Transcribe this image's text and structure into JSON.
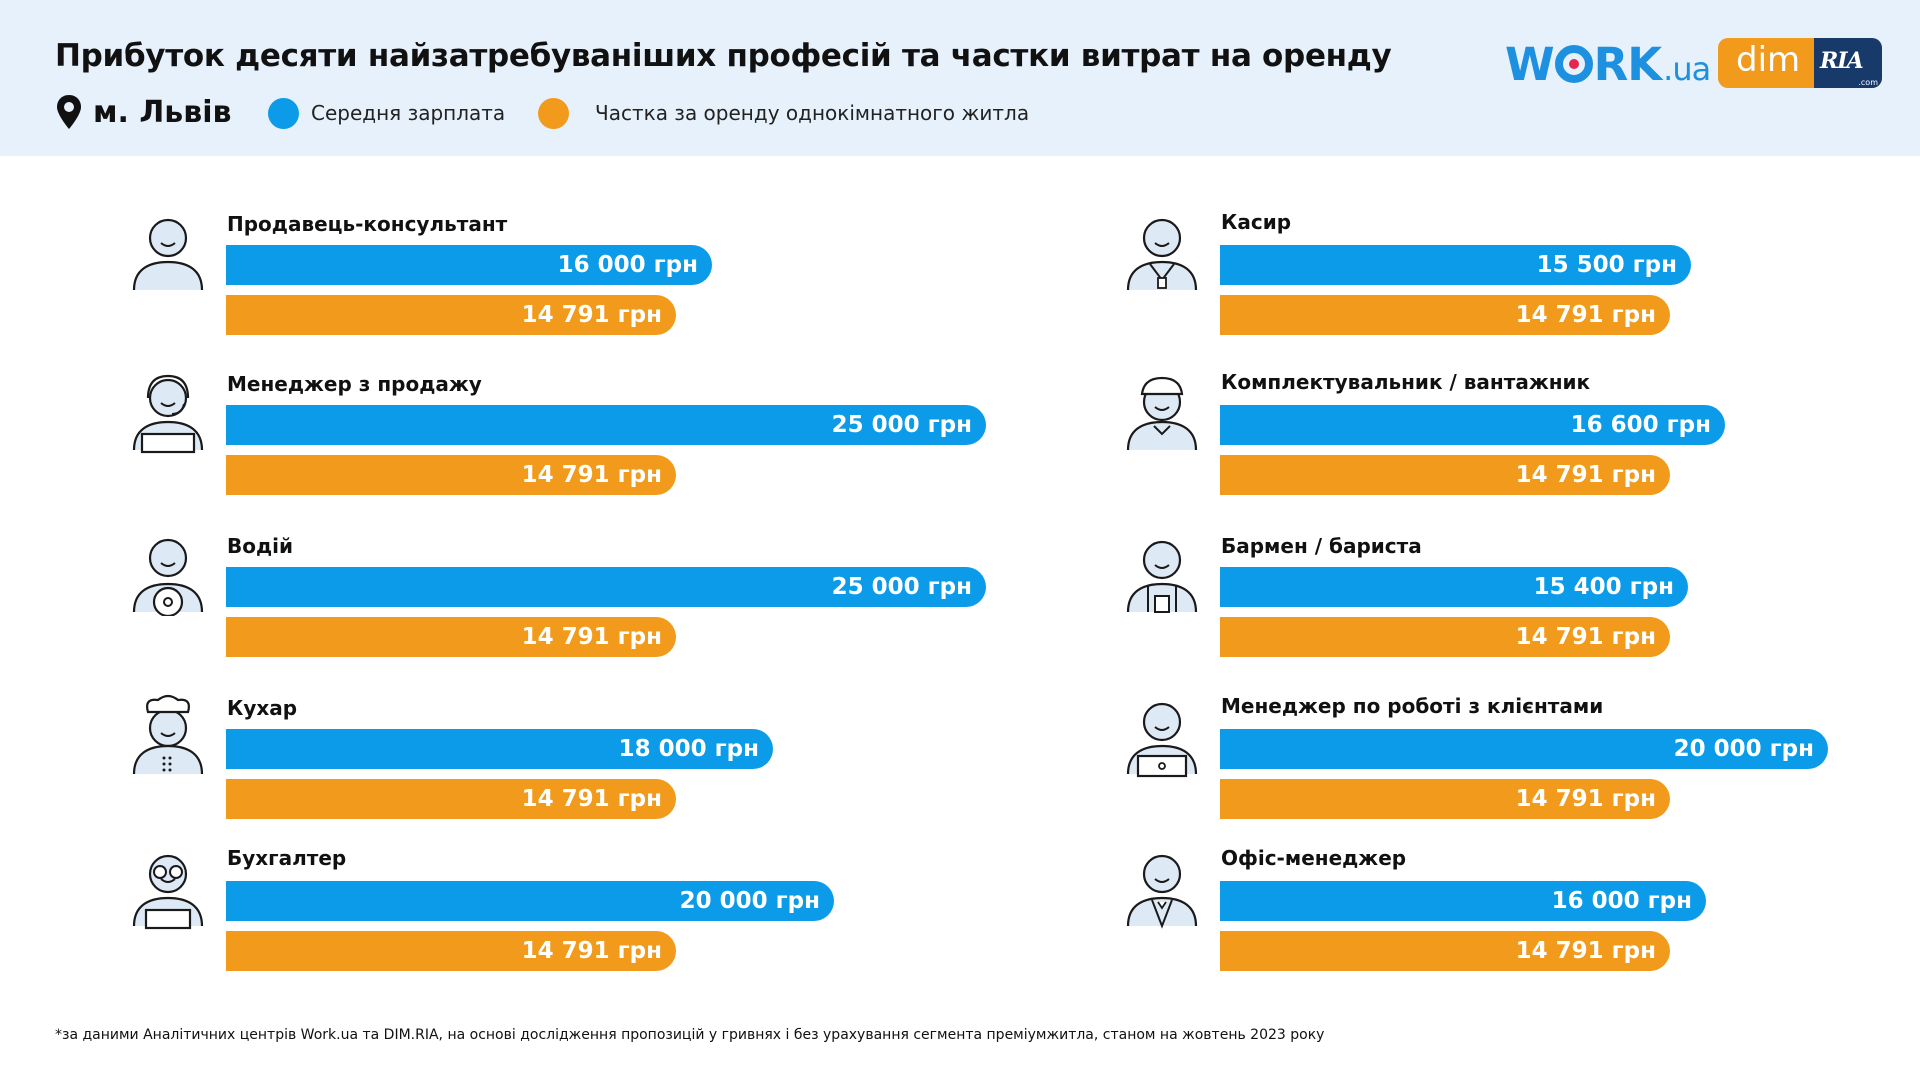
{
  "header": {
    "title": "Прибуток десяти найзатребуваніших професій та частки витрат на оренду",
    "city": "м. Львів",
    "legend": [
      {
        "label": "Середня зарплата",
        "color": "#0b9be8"
      },
      {
        "label": "Частка за оренду однокімнатного житла",
        "color": "#f29a1b"
      }
    ],
    "logos": {
      "work_text_1": "W",
      "work_text_2": "RK",
      "work_text_3": ".ua",
      "dim_text": "dim",
      "ria_text": "RIA",
      "ria_sub": ".com"
    }
  },
  "chart_data": {
    "type": "bar",
    "orientation": "horizontal",
    "unit": "грн",
    "series": [
      {
        "name": "Середня зарплата",
        "color": "#0b9be8"
      },
      {
        "name": "Частка за оренду однокімнатного житла",
        "color": "#f29a1b"
      }
    ],
    "items": [
      {
        "profession": "Продавець-консультант",
        "icon": "person-icon",
        "salary": 16000,
        "salary_label": "16 000 грн",
        "rent": 14791,
        "rent_label": "14 791 грн"
      },
      {
        "profession": "Менеджер з продажу",
        "icon": "headset-person-icon",
        "salary": 25000,
        "salary_label": "25 000 грн",
        "rent": 14791,
        "rent_label": "14 791 грн"
      },
      {
        "profession": "Водій",
        "icon": "driver-icon",
        "salary": 25000,
        "salary_label": "25 000 грн",
        "rent": 14791,
        "rent_label": "14 791 грн"
      },
      {
        "profession": "Кухар",
        "icon": "chef-icon",
        "salary": 18000,
        "salary_label": "18 000 грн",
        "rent": 14791,
        "rent_label": "14 791 грн"
      },
      {
        "profession": "Бухгалтер",
        "icon": "accountant-icon",
        "salary": 20000,
        "salary_label": "20 000 грн",
        "rent": 14791,
        "rent_label": "14 791 грн"
      },
      {
        "profession": "Касир",
        "icon": "cashier-icon",
        "salary": 15500,
        "salary_label": "15 500 грн",
        "rent": 14791,
        "rent_label": "14 791 грн"
      },
      {
        "profession": "Комплектувальник / вантажник",
        "icon": "loader-icon",
        "salary": 16600,
        "salary_label": "16 600 грн",
        "rent": 14791,
        "rent_label": "14 791 грн"
      },
      {
        "profession": "Бармен / бариста",
        "icon": "barista-icon",
        "salary": 15400,
        "salary_label": "15 400 грн",
        "rent": 14791,
        "rent_label": "14 791 грн"
      },
      {
        "profession": "Менеджер по роботі з клієнтами",
        "icon": "laptop-person-icon",
        "salary": 20000,
        "salary_label": "20 000 грн",
        "rent": 14791,
        "rent_label": "14 791 грн"
      },
      {
        "profession": "Офіс-менеджер",
        "icon": "office-person-icon",
        "salary": 16000,
        "salary_label": "16 000 грн",
        "rent": 14791,
        "rent_label": "14 791 грн"
      }
    ]
  },
  "footnote": "*за даними Аналітичних центрів Work.ua та DIM.RIA, на основі дослідження пропозицій у гривнях і без урахування сегмента преміумжитла, станом на жовтень 2023 року"
}
